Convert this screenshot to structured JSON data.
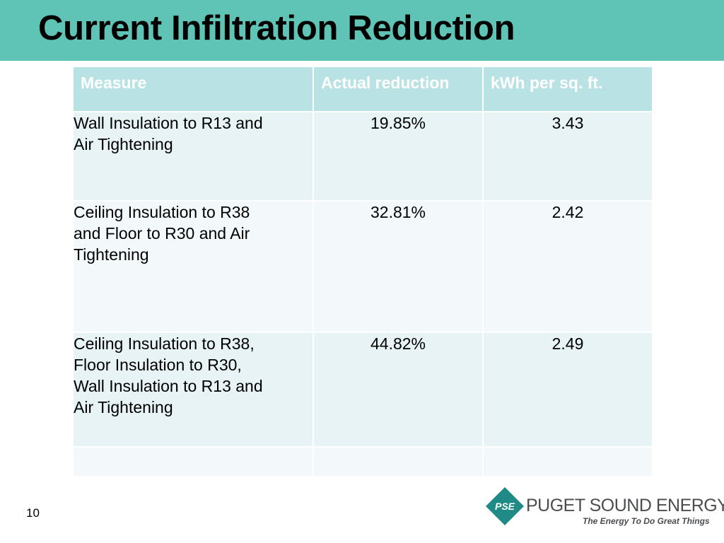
{
  "slide": {
    "title": "Current Infiltration Reduction",
    "page_number": "10"
  },
  "table": {
    "headers": [
      "Measure",
      "Actual reduction",
      "kWh per sq. ft."
    ],
    "rows": [
      {
        "measure": [
          "Wall Insulation to R13 and",
          "Air Tightening"
        ],
        "reduction": "19.85%",
        "kwh": "3.43"
      },
      {
        "measure": [
          "Ceiling Insulation to R38",
          "and Floor to R30 and Air",
          "Tightening"
        ],
        "reduction": "32.81%",
        "kwh": "2.42"
      },
      {
        "measure": [
          "Ceiling Insulation to R38,",
          "Floor Insulation to R30,",
          "Wall Insulation to R13 and",
          "Air Tightening"
        ],
        "reduction": "44.82%",
        "kwh": "2.49"
      },
      {
        "measure": [],
        "reduction": "",
        "kwh": ""
      }
    ]
  },
  "logo": {
    "mark": "PSE",
    "name": "PUGET SOUND ENERGY",
    "tagline": "The Energy To Do Great Things"
  },
  "colors": {
    "title_bar": "#5fc4b6",
    "header_row": "#b9e2e4",
    "row_dark": "#e7f3f4",
    "row_light": "#f3f9fa",
    "logo_teal": "#1f8a86"
  }
}
